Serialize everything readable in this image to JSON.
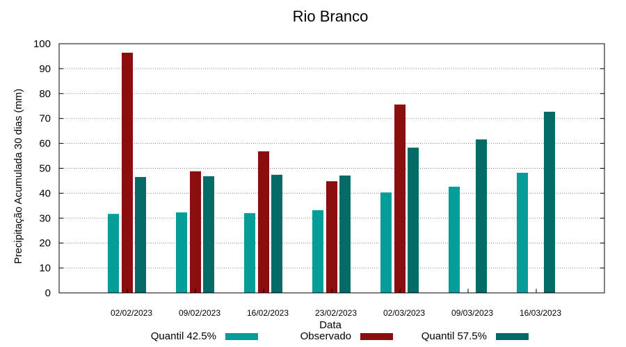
{
  "chart_data": {
    "type": "bar",
    "title": "Rio Branco",
    "xlabel": "Data",
    "ylabel": "Precipitação Acumulada 30 dias (mm)",
    "ylim": [
      0,
      100
    ],
    "yticks": [
      0,
      10,
      20,
      30,
      40,
      50,
      60,
      70,
      80,
      90,
      100
    ],
    "grid": true,
    "legend_position": "bottom",
    "categories": [
      "02/02/2023",
      "09/02/2023",
      "16/02/2023",
      "23/02/2023",
      "02/03/2023",
      "09/03/2023",
      "16/03/2023"
    ],
    "series": [
      {
        "name": "Quantil 42.5%",
        "color": "#069c9a",
        "values": [
          31.7,
          32.3,
          32.0,
          33.2,
          40.3,
          42.6,
          48.2
        ]
      },
      {
        "name": "Observado",
        "color": "#8b0e0e",
        "values": [
          96.4,
          48.8,
          56.8,
          44.8,
          75.6,
          null,
          null
        ]
      },
      {
        "name": "Quantil 57.5%",
        "color": "#046a66",
        "values": [
          46.5,
          46.8,
          47.4,
          47.1,
          58.3,
          61.6,
          72.7
        ]
      }
    ]
  }
}
